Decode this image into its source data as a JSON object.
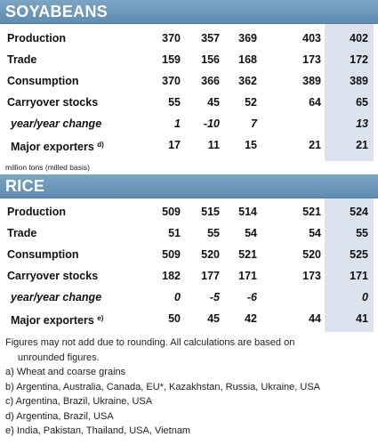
{
  "soy": {
    "title": "SOYABEANS",
    "rows": [
      {
        "label": "Production",
        "v": [
          "370",
          "357",
          "369",
          "403",
          "402"
        ]
      },
      {
        "label": "Trade",
        "v": [
          "159",
          "156",
          "168",
          "173",
          "172"
        ]
      },
      {
        "label": "Consumption",
        "v": [
          "370",
          "366",
          "362",
          "389",
          "389"
        ]
      },
      {
        "label": "Carryover stocks",
        "v": [
          "55",
          "45",
          "52",
          "64",
          "65"
        ]
      },
      {
        "label": "year/year change",
        "v": [
          "1",
          "-10",
          "7",
          "",
          "13"
        ]
      },
      {
        "label": "Major exporters",
        "sup": "d)",
        "v": [
          "17",
          "11",
          "15",
          "21",
          "21"
        ]
      }
    ]
  },
  "units": "million tons (milled basis)",
  "rice": {
    "title": "RICE",
    "rows": [
      {
        "label": "Production",
        "v": [
          "509",
          "515",
          "514",
          "521",
          "524"
        ]
      },
      {
        "label": "Trade",
        "v": [
          "51",
          "55",
          "54",
          "54",
          "55"
        ]
      },
      {
        "label": "Consumption",
        "v": [
          "509",
          "520",
          "521",
          "520",
          "525"
        ]
      },
      {
        "label": "Carryover stocks",
        "v": [
          "182",
          "177",
          "171",
          "173",
          "171"
        ]
      },
      {
        "label": "year/year change",
        "v": [
          "0",
          "-5",
          "-6",
          "",
          "0"
        ]
      },
      {
        "label": "Major exporters",
        "sup": "e)",
        "v": [
          "50",
          "45",
          "42",
          "44",
          "41"
        ]
      }
    ]
  },
  "notes": {
    "rounding_1": "Figures may not add due to rounding. All calculations are based on",
    "rounding_2": "unrounded figures.",
    "a": "a) Wheat and coarse grains",
    "b": "b) Argentina, Australia, Canada, EU*, Kazakhstan, Russia, Ukraine, USA",
    "c": "c) Argentina, Brazil, Ukraine, USA",
    "d": "d) Argentina, Brazil, USA",
    "e": "e) India, Pakistan, Thailand, USA, Vietnam"
  }
}
